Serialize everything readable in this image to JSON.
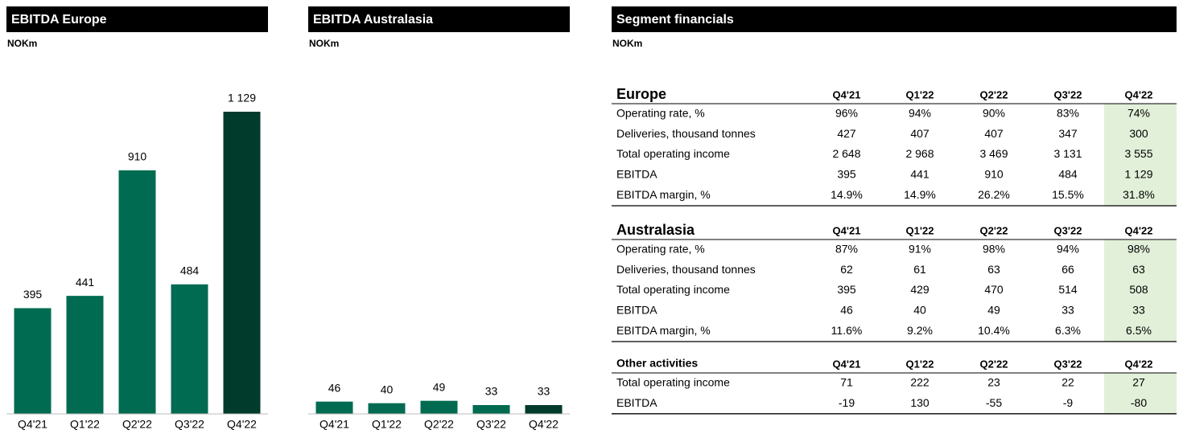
{
  "chart_data": [
    {
      "type": "bar",
      "title": "EBITDA Europe",
      "subtitle": "NOKm",
      "categories": [
        "Q4'21",
        "Q1'22",
        "Q2'22",
        "Q3'22",
        "Q4'22"
      ],
      "values": [
        395,
        441,
        910,
        484,
        1129
      ],
      "value_labels": [
        "395",
        "441",
        "910",
        "484",
        "1 129"
      ],
      "colors": [
        "#006b50",
        "#006b50",
        "#006b50",
        "#006b50",
        "#003b2b"
      ]
    },
    {
      "type": "bar",
      "title": "EBITDA Australasia",
      "subtitle": "NOKm",
      "categories": [
        "Q4'21",
        "Q1'22",
        "Q2'22",
        "Q3'22",
        "Q4'22"
      ],
      "values": [
        46,
        40,
        49,
        33,
        33
      ],
      "colors": [
        "#006b50",
        "#006b50",
        "#006b50",
        "#006b50",
        "#003b2b"
      ]
    }
  ],
  "table": {
    "title": "Segment financials",
    "subtitle": "NOKm",
    "sections": [
      {
        "title": "Europe",
        "columns": [
          "Q4'21",
          "Q1'22",
          "Q2'22",
          "Q3'22",
          "Q4'22"
        ],
        "rows": [
          {
            "label": "Operating rate, %",
            "values": [
              "96%",
              "94%",
              "90%",
              "83%",
              "74%"
            ]
          },
          {
            "label": "Deliveries, thousand tonnes",
            "values": [
              "427",
              "407",
              "407",
              "347",
              "300"
            ]
          },
          {
            "label": "Total operating income",
            "values": [
              "2 648",
              "2 968",
              "3 469",
              "3 131",
              "3 555"
            ]
          },
          {
            "label": "EBITDA",
            "values": [
              "395",
              "441",
              "910",
              "484",
              "1 129"
            ]
          },
          {
            "label": "EBITDA margin, %",
            "values": [
              "14.9%",
              "14.9%",
              "26.2%",
              "15.5%",
              "31.8%"
            ]
          }
        ]
      },
      {
        "title": "Australasia",
        "columns": [
          "Q4'21",
          "Q1'22",
          "Q2'22",
          "Q3'22",
          "Q4'22"
        ],
        "rows": [
          {
            "label": "Operating rate, %",
            "values": [
              "87%",
              "91%",
              "98%",
              "94%",
              "98%"
            ]
          },
          {
            "label": "Deliveries, thousand tonnes",
            "values": [
              "62",
              "61",
              "63",
              "66",
              "63"
            ]
          },
          {
            "label": "Total operating income",
            "values": [
              "395",
              "429",
              "470",
              "514",
              "508"
            ]
          },
          {
            "label": "EBITDA",
            "values": [
              "46",
              "40",
              "49",
              "33",
              "33"
            ]
          },
          {
            "label": "EBITDA margin, %",
            "values": [
              "11.6%",
              "9.2%",
              "10.4%",
              "6.3%",
              "6.5%"
            ]
          }
        ]
      },
      {
        "title": "Other activities",
        "columns": [
          "Q4'21",
          "Q1'22",
          "Q2'22",
          "Q3'22",
          "Q4'22"
        ],
        "rows": [
          {
            "label": "Total operating income",
            "values": [
              "71",
              "222",
              "23",
              "22",
              "27"
            ]
          },
          {
            "label": "EBITDA",
            "values": [
              "-19",
              "130",
              "-55",
              "-9",
              "-80"
            ]
          }
        ]
      }
    ]
  }
}
